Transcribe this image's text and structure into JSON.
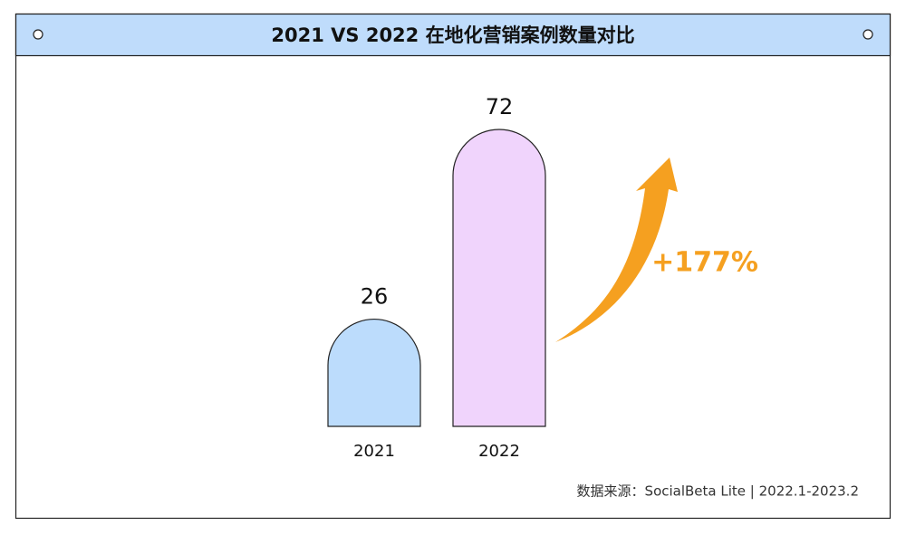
{
  "chart_data": {
    "type": "bar",
    "title": "2021 VS 2022 在地化营销案例数量对比",
    "categories": [
      "2021",
      "2022"
    ],
    "values": [
      26,
      72
    ],
    "colors": [
      "#bcdcfc",
      "#f0d4fc"
    ],
    "annotation": "+177%",
    "source": "数据来源：SocialBeta Lite | 2022.1-2023.2"
  }
}
